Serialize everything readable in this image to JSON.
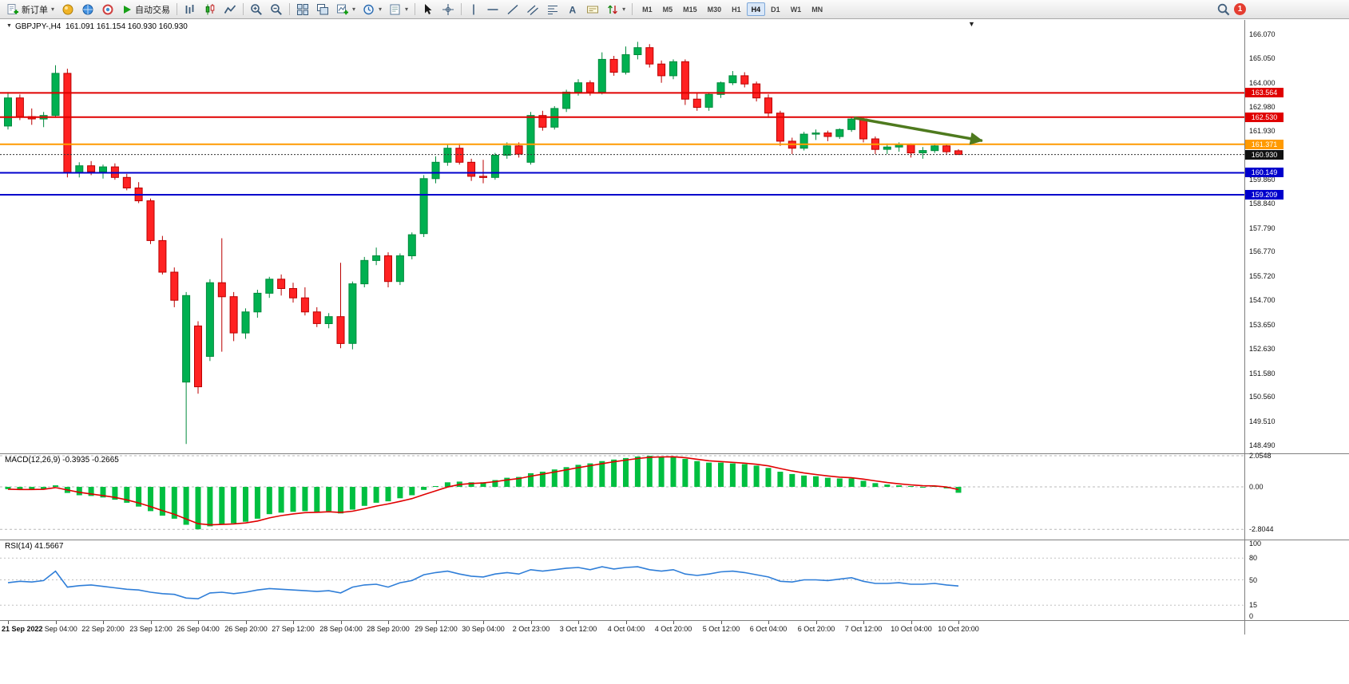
{
  "toolbar": {
    "new_order_label": "新订单",
    "autotrade_label": "自动交易",
    "timeframes": [
      "M1",
      "M5",
      "M15",
      "M30",
      "H1",
      "H4",
      "D1",
      "W1",
      "MN"
    ],
    "active_timeframe": "H4",
    "notification_count": "1",
    "icons": {
      "new-order-icon": "document-with-green-plus",
      "wizard-icon": "gold-circle",
      "market-watch-icon": "blue-globe",
      "community-icon": "red-target-circle",
      "autotrade-play-icon": "green-play-triangle",
      "bar-chart-icon": "ohlc-bars",
      "candlestick-chart-icon": "two-candles",
      "line-chart-icon": "zigzag-line",
      "zoom-in-icon": "magnifier-plus",
      "zoom-out-icon": "magnifier-minus",
      "tile-windows-icon": "four-tiles",
      "cascade-windows-icon": "stacked-windows",
      "indicators-icon": "chart-with-green-plus",
      "periods-icon": "blue-clock",
      "templates-icon": "document-lines",
      "cursor-icon": "pointer-arrow",
      "crosshair-icon": "crosshair",
      "vline-icon": "vertical-line",
      "hline-icon": "horizontal-line",
      "trendline-icon": "diagonal-line",
      "channel-icon": "parallel-diagonal-lines",
      "fibonacci-icon": "fibo-retracement-lines",
      "text-icon": "letter-A",
      "label-icon": "text-label-box",
      "arrows-icon": "up-down-arrows",
      "search-icon": "magnifier",
      "notification-badge": "red-circle-with-count"
    }
  },
  "panels": {
    "price": {
      "symbol_label": "GBPJPY-,H4",
      "ohlc": "161.091 161.154 160.930 160.930"
    },
    "macd": {
      "label": "MACD(12,26,9)",
      "value_main": "-0.3935",
      "value_signal": "-0.2665"
    },
    "rsi": {
      "label": "RSI(14)",
      "value": "41.5667"
    }
  },
  "chart_data": {
    "type": "candlestick",
    "symbol": "GBPJPY-",
    "timeframe": "H4",
    "title_ohlc": {
      "open": "161.091",
      "high": "161.154",
      "low": "160.930",
      "close": "160.930"
    },
    "ylim": [
      148.2,
      166.3
    ],
    "price_scale_labels": [
      "166.070",
      "165.050",
      "164.000",
      "162.980",
      "161.930",
      "159.860",
      "158.840",
      "157.790",
      "156.770",
      "155.720",
      "154.700",
      "153.650",
      "152.630",
      "151.580",
      "150.560",
      "149.510",
      "148.490"
    ],
    "candle_colors": {
      "up": "#00b050",
      "down": "#ff2222",
      "up_stroke": "#008a3c",
      "down_stroke": "#bb0000"
    },
    "candles": [
      [
        162.15,
        163.6,
        162.0,
        163.35
      ],
      [
        163.35,
        163.5,
        162.4,
        162.55
      ],
      [
        162.55,
        162.9,
        162.2,
        162.45
      ],
      [
        162.45,
        162.75,
        162.1,
        162.6
      ],
      [
        162.6,
        164.75,
        162.5,
        164.4
      ],
      [
        164.4,
        164.6,
        159.95,
        160.15
      ],
      [
        160.15,
        160.6,
        159.95,
        160.45
      ],
      [
        160.45,
        160.65,
        160.05,
        160.2
      ],
      [
        160.2,
        160.5,
        159.9,
        160.4
      ],
      [
        160.4,
        160.55,
        159.85,
        159.95
      ],
      [
        159.95,
        160.1,
        159.4,
        159.5
      ],
      [
        159.5,
        159.75,
        158.85,
        158.95
      ],
      [
        158.95,
        159.05,
        157.1,
        157.25
      ],
      [
        157.25,
        157.45,
        155.8,
        155.9
      ],
      [
        155.9,
        156.1,
        154.4,
        154.7
      ],
      [
        151.2,
        155.05,
        148.55,
        154.9
      ],
      [
        153.6,
        153.8,
        150.7,
        151.0
      ],
      [
        152.3,
        155.6,
        152.1,
        155.45
      ],
      [
        155.45,
        157.35,
        152.5,
        154.85
      ],
      [
        154.85,
        155.05,
        152.95,
        153.3
      ],
      [
        153.3,
        154.35,
        153.05,
        154.2
      ],
      [
        154.2,
        155.15,
        153.95,
        155.0
      ],
      [
        155.0,
        155.7,
        154.8,
        155.6
      ],
      [
        155.6,
        155.8,
        154.9,
        155.2
      ],
      [
        155.2,
        155.45,
        154.6,
        154.8
      ],
      [
        154.8,
        155.25,
        154.05,
        154.2
      ],
      [
        154.2,
        154.4,
        153.55,
        153.7
      ],
      [
        153.7,
        154.15,
        153.5,
        154.0
      ],
      [
        154.0,
        156.3,
        152.65,
        152.85
      ],
      [
        152.85,
        155.5,
        152.6,
        155.4
      ],
      [
        155.4,
        156.55,
        155.25,
        156.4
      ],
      [
        156.4,
        156.95,
        156.2,
        156.6
      ],
      [
        156.6,
        156.75,
        155.25,
        155.5
      ],
      [
        155.5,
        156.7,
        155.35,
        156.6
      ],
      [
        156.6,
        157.6,
        156.45,
        157.5
      ],
      [
        157.55,
        160.05,
        157.4,
        159.9
      ],
      [
        159.9,
        160.85,
        159.7,
        160.6
      ],
      [
        160.6,
        161.35,
        160.45,
        161.2
      ],
      [
        161.2,
        161.4,
        160.5,
        160.6
      ],
      [
        160.6,
        160.75,
        159.8,
        160.0
      ],
      [
        160.0,
        160.7,
        159.7,
        159.95
      ],
      [
        159.95,
        161.0,
        159.85,
        160.9
      ],
      [
        160.9,
        161.45,
        160.75,
        161.3
      ],
      [
        161.3,
        161.45,
        160.8,
        160.95
      ],
      [
        160.6,
        162.75,
        160.5,
        162.6
      ],
      [
        162.6,
        162.8,
        161.95,
        162.1
      ],
      [
        162.1,
        163.0,
        162.0,
        162.9
      ],
      [
        162.9,
        163.7,
        162.75,
        163.6
      ],
      [
        163.6,
        164.15,
        163.45,
        164.0
      ],
      [
        164.0,
        164.1,
        163.45,
        163.6
      ],
      [
        163.6,
        165.3,
        163.5,
        165.0
      ],
      [
        165.0,
        165.15,
        164.3,
        164.45
      ],
      [
        164.45,
        165.55,
        164.35,
        165.2
      ],
      [
        165.2,
        165.75,
        165.0,
        165.5
      ],
      [
        165.5,
        165.65,
        164.65,
        164.8
      ],
      [
        164.8,
        164.95,
        164.0,
        164.3
      ],
      [
        164.3,
        165.0,
        164.15,
        164.9
      ],
      [
        164.9,
        165.0,
        163.05,
        163.3
      ],
      [
        163.3,
        163.55,
        162.8,
        162.95
      ],
      [
        162.95,
        163.6,
        162.8,
        163.5
      ],
      [
        163.5,
        164.05,
        163.35,
        164.0
      ],
      [
        164.0,
        164.5,
        163.9,
        164.3
      ],
      [
        164.3,
        164.45,
        163.8,
        163.95
      ],
      [
        163.95,
        164.05,
        163.2,
        163.35
      ],
      [
        163.35,
        163.5,
        162.5,
        162.7
      ],
      [
        162.7,
        162.8,
        161.3,
        161.5
      ],
      [
        161.5,
        161.65,
        160.95,
        161.2
      ],
      [
        161.2,
        161.9,
        161.1,
        161.8
      ],
      [
        161.8,
        162.0,
        161.55,
        161.85
      ],
      [
        161.85,
        161.95,
        161.5,
        161.7
      ],
      [
        161.7,
        162.05,
        161.6,
        162.0
      ],
      [
        162.0,
        162.55,
        161.9,
        162.45
      ],
      [
        162.45,
        162.5,
        161.45,
        161.6
      ],
      [
        161.6,
        161.7,
        160.95,
        161.15
      ],
      [
        161.15,
        161.4,
        160.95,
        161.25
      ],
      [
        161.25,
        161.45,
        161.05,
        161.35
      ],
      [
        161.35,
        161.4,
        160.8,
        161.0
      ],
      [
        161.0,
        161.25,
        160.75,
        161.1
      ],
      [
        161.1,
        161.4,
        161.0,
        161.3
      ],
      [
        161.3,
        161.35,
        160.95,
        161.05
      ],
      [
        161.091,
        161.154,
        160.93,
        160.93
      ]
    ],
    "hlines": [
      {
        "price": 163.564,
        "label": "163.564",
        "color": "#e00000"
      },
      {
        "price": 162.53,
        "label": "162.530",
        "color": "#e00000"
      },
      {
        "price": 161.371,
        "label": "161.371",
        "color": "#ff9a00"
      },
      {
        "price": 160.149,
        "label": "160.149",
        "color": "#0000cc"
      },
      {
        "price": 159.209,
        "label": "159.209",
        "color": "#0000cc"
      }
    ],
    "current_price": {
      "price": 160.93,
      "label": "160.930",
      "badge_color": "#111111"
    },
    "trend_arrow": {
      "from_index": 71.2,
      "from_price": 162.5,
      "to_index": 82.0,
      "to_price": 161.52,
      "color": "#4e7a1e"
    },
    "time_labels": [
      "21 Sep 2022",
      "22 Sep 04:00",
      "22 Sep 20:00",
      "23 Sep 12:00",
      "26 Sep 04:00",
      "26 Sep 20:00",
      "27 Sep 12:00",
      "28 Sep 04:00",
      "28 Sep 20:00",
      "29 Sep 12:00",
      "30 Sep 04:00",
      "2 Oct 23:00",
      "3 Oct 12:00",
      "4 Oct 04:00",
      "4 Oct 20:00",
      "5 Oct 12:00",
      "6 Oct 04:00",
      "6 Oct 20:00",
      "7 Oct 12:00",
      "10 Oct 04:00",
      "10 Oct 20:00"
    ],
    "label_every_n_candles": 4,
    "macd": {
      "title": "MACD(12,26,9)",
      "hist_color": "#00bf40",
      "line_color": "#e00000",
      "signal_ema_alpha": 0.45,
      "scale": [
        {
          "value": 2.0548,
          "label": "2.0548"
        },
        {
          "value": 0,
          "label": "0.00"
        },
        {
          "value": -2.8044,
          "label": "-2.8044"
        }
      ],
      "histogram": [
        -0.15,
        -0.2,
        -0.18,
        -0.15,
        0.1,
        -0.4,
        -0.55,
        -0.6,
        -0.7,
        -0.85,
        -1.05,
        -1.3,
        -1.6,
        -1.9,
        -2.1,
        -2.5,
        -2.8,
        -2.6,
        -2.45,
        -2.4,
        -2.3,
        -2.1,
        -1.8,
        -1.7,
        -1.65,
        -1.6,
        -1.65,
        -1.6,
        -1.75,
        -1.5,
        -1.25,
        -1.05,
        -0.95,
        -0.75,
        -0.55,
        -0.2,
        0.05,
        0.3,
        0.35,
        0.3,
        0.3,
        0.45,
        0.6,
        0.65,
        0.9,
        1.0,
        1.15,
        1.3,
        1.45,
        1.55,
        1.7,
        1.8,
        1.9,
        2.0,
        2.05,
        2.0,
        2.0,
        1.85,
        1.7,
        1.6,
        1.6,
        1.55,
        1.5,
        1.4,
        1.25,
        1.0,
        0.85,
        0.75,
        0.7,
        0.6,
        0.55,
        0.55,
        0.4,
        0.25,
        0.15,
        0.1,
        0.05,
        0.0,
        0.05,
        -0.1,
        -0.39
      ]
    },
    "rsi": {
      "title": "RSI(14)",
      "color": "#2f7ed8",
      "current_value": 41.5667,
      "levels": [
        {
          "value": 80,
          "label": "80"
        },
        {
          "value": 50,
          "label": "50"
        },
        {
          "value": 15,
          "label": "15"
        }
      ],
      "edge_labels": [
        {
          "value": 100,
          "label": "100"
        },
        {
          "value": 0,
          "label": "0"
        }
      ],
      "values": [
        46,
        48,
        47,
        49,
        62,
        40,
        42,
        43,
        41,
        39,
        37,
        36,
        33,
        31,
        30,
        25,
        24,
        32,
        33,
        31,
        33,
        36,
        38,
        37,
        36,
        35,
        34,
        35,
        32,
        40,
        43,
        44,
        40,
        46,
        49,
        57,
        60,
        62,
        58,
        55,
        54,
        58,
        60,
        58,
        64,
        62,
        64,
        66,
        67,
        64,
        68,
        65,
        67,
        68,
        64,
        62,
        64,
        58,
        56,
        58,
        61,
        62,
        60,
        57,
        54,
        48,
        47,
        50,
        50,
        49,
        51,
        53,
        48,
        45,
        45,
        46,
        44,
        44,
        45,
        43,
        41.57
      ]
    }
  }
}
